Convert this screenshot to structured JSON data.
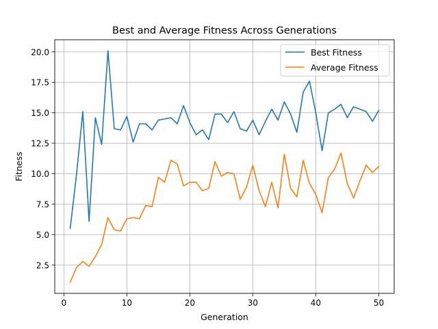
{
  "chart_data": {
    "type": "line",
    "title": "Best and Average Fitness Across Generations",
    "xlabel": "Generation",
    "ylabel": "Fitness",
    "xlim": [
      -1.45,
      52.45
    ],
    "ylim": [
      0.18,
      21.0
    ],
    "grid": true,
    "legend_position": "top-right",
    "x_ticks": [
      0,
      10,
      20,
      30,
      40,
      50
    ],
    "y_ticks": [
      2.5,
      5.0,
      7.5,
      10.0,
      12.5,
      15.0,
      17.5,
      20.0
    ],
    "x_tick_labels": [
      "0",
      "10",
      "20",
      "30",
      "40",
      "50"
    ],
    "y_tick_labels": [
      "2.5",
      "5.0",
      "7.5",
      "10.0",
      "12.5",
      "15.0",
      "17.5",
      "20.0"
    ],
    "x": [
      1,
      2,
      3,
      4,
      5,
      6,
      7,
      8,
      9,
      10,
      11,
      12,
      13,
      14,
      15,
      16,
      17,
      18,
      19,
      20,
      21,
      22,
      23,
      24,
      25,
      26,
      27,
      28,
      29,
      30,
      31,
      32,
      33,
      34,
      35,
      36,
      37,
      38,
      39,
      40,
      41,
      42,
      43,
      44,
      45,
      46,
      47,
      48,
      49,
      50
    ],
    "series": [
      {
        "name": "Best Fitness",
        "color": "#1f77b4",
        "values": [
          5.5,
          9.9,
          15.1,
          6.1,
          14.6,
          12.4,
          20.1,
          13.7,
          13.6,
          14.7,
          12.6,
          14.1,
          14.1,
          13.6,
          14.4,
          14.5,
          14.6,
          14.1,
          15.6,
          14.2,
          13.2,
          13.6,
          12.8,
          14.9,
          14.9,
          14.2,
          15.1,
          13.7,
          13.5,
          14.4,
          13.2,
          14.3,
          15.3,
          14.4,
          15.9,
          14.9,
          13.4,
          16.7,
          17.6,
          15.0,
          11.9,
          15.0,
          15.3,
          15.7,
          14.6,
          15.5,
          15.3,
          15.1,
          14.3,
          15.2
        ]
      },
      {
        "name": "Average Fitness",
        "color": "#ff7f0e",
        "values": [
          1.1,
          2.3,
          2.8,
          2.4,
          3.2,
          4.2,
          6.4,
          5.4,
          5.3,
          6.3,
          6.4,
          6.3,
          7.4,
          7.3,
          9.7,
          9.3,
          11.1,
          10.8,
          9.0,
          9.3,
          9.3,
          8.6,
          8.8,
          11.0,
          9.8,
          10.1,
          10.0,
          7.9,
          8.9,
          10.7,
          8.6,
          7.3,
          9.3,
          7.2,
          11.6,
          8.8,
          8.1,
          11.1,
          9.2,
          8.3,
          6.8,
          9.7,
          10.4,
          11.7,
          9.2,
          8.0,
          9.4,
          10.7,
          10.1,
          10.6
        ]
      }
    ]
  }
}
